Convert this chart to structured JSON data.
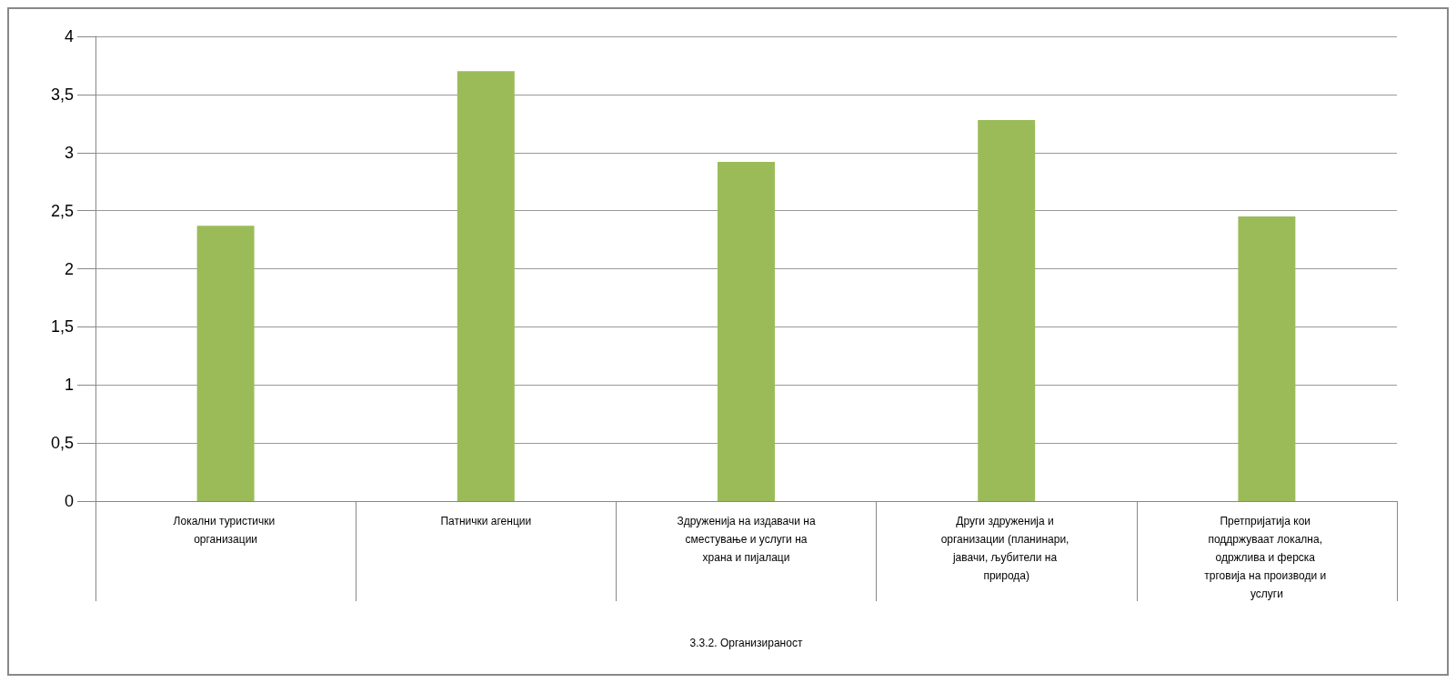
{
  "chart_data": {
    "type": "bar",
    "xlabel": "3.3.2. Организираност",
    "categories": [
      "Локални туристички организации",
      "Патнички агенции",
      "Здруженија на издавачи на сместување и услуги на храна и пијалаци",
      "Други здруженија и организации (планинари, јавачи, љубители на природа)",
      "Претпријатија кои поддржуваат локална, одржлива и ферска трговија на производи и услуги"
    ],
    "values": [
      2.37,
      3.7,
      2.92,
      3.28,
      2.45
    ],
    "color": "#9bbb59",
    "ylim": [
      0,
      4
    ],
    "yticks": [
      0,
      {
        "value": 0.5,
        "label": "0,5"
      },
      1,
      {
        "value": 1.5,
        "label": "1,5"
      },
      2,
      {
        "value": 2.5,
        "label": "2,5"
      },
      3,
      {
        "value": 3.5,
        "label": "3,5"
      },
      4
    ],
    "grid": "y"
  }
}
